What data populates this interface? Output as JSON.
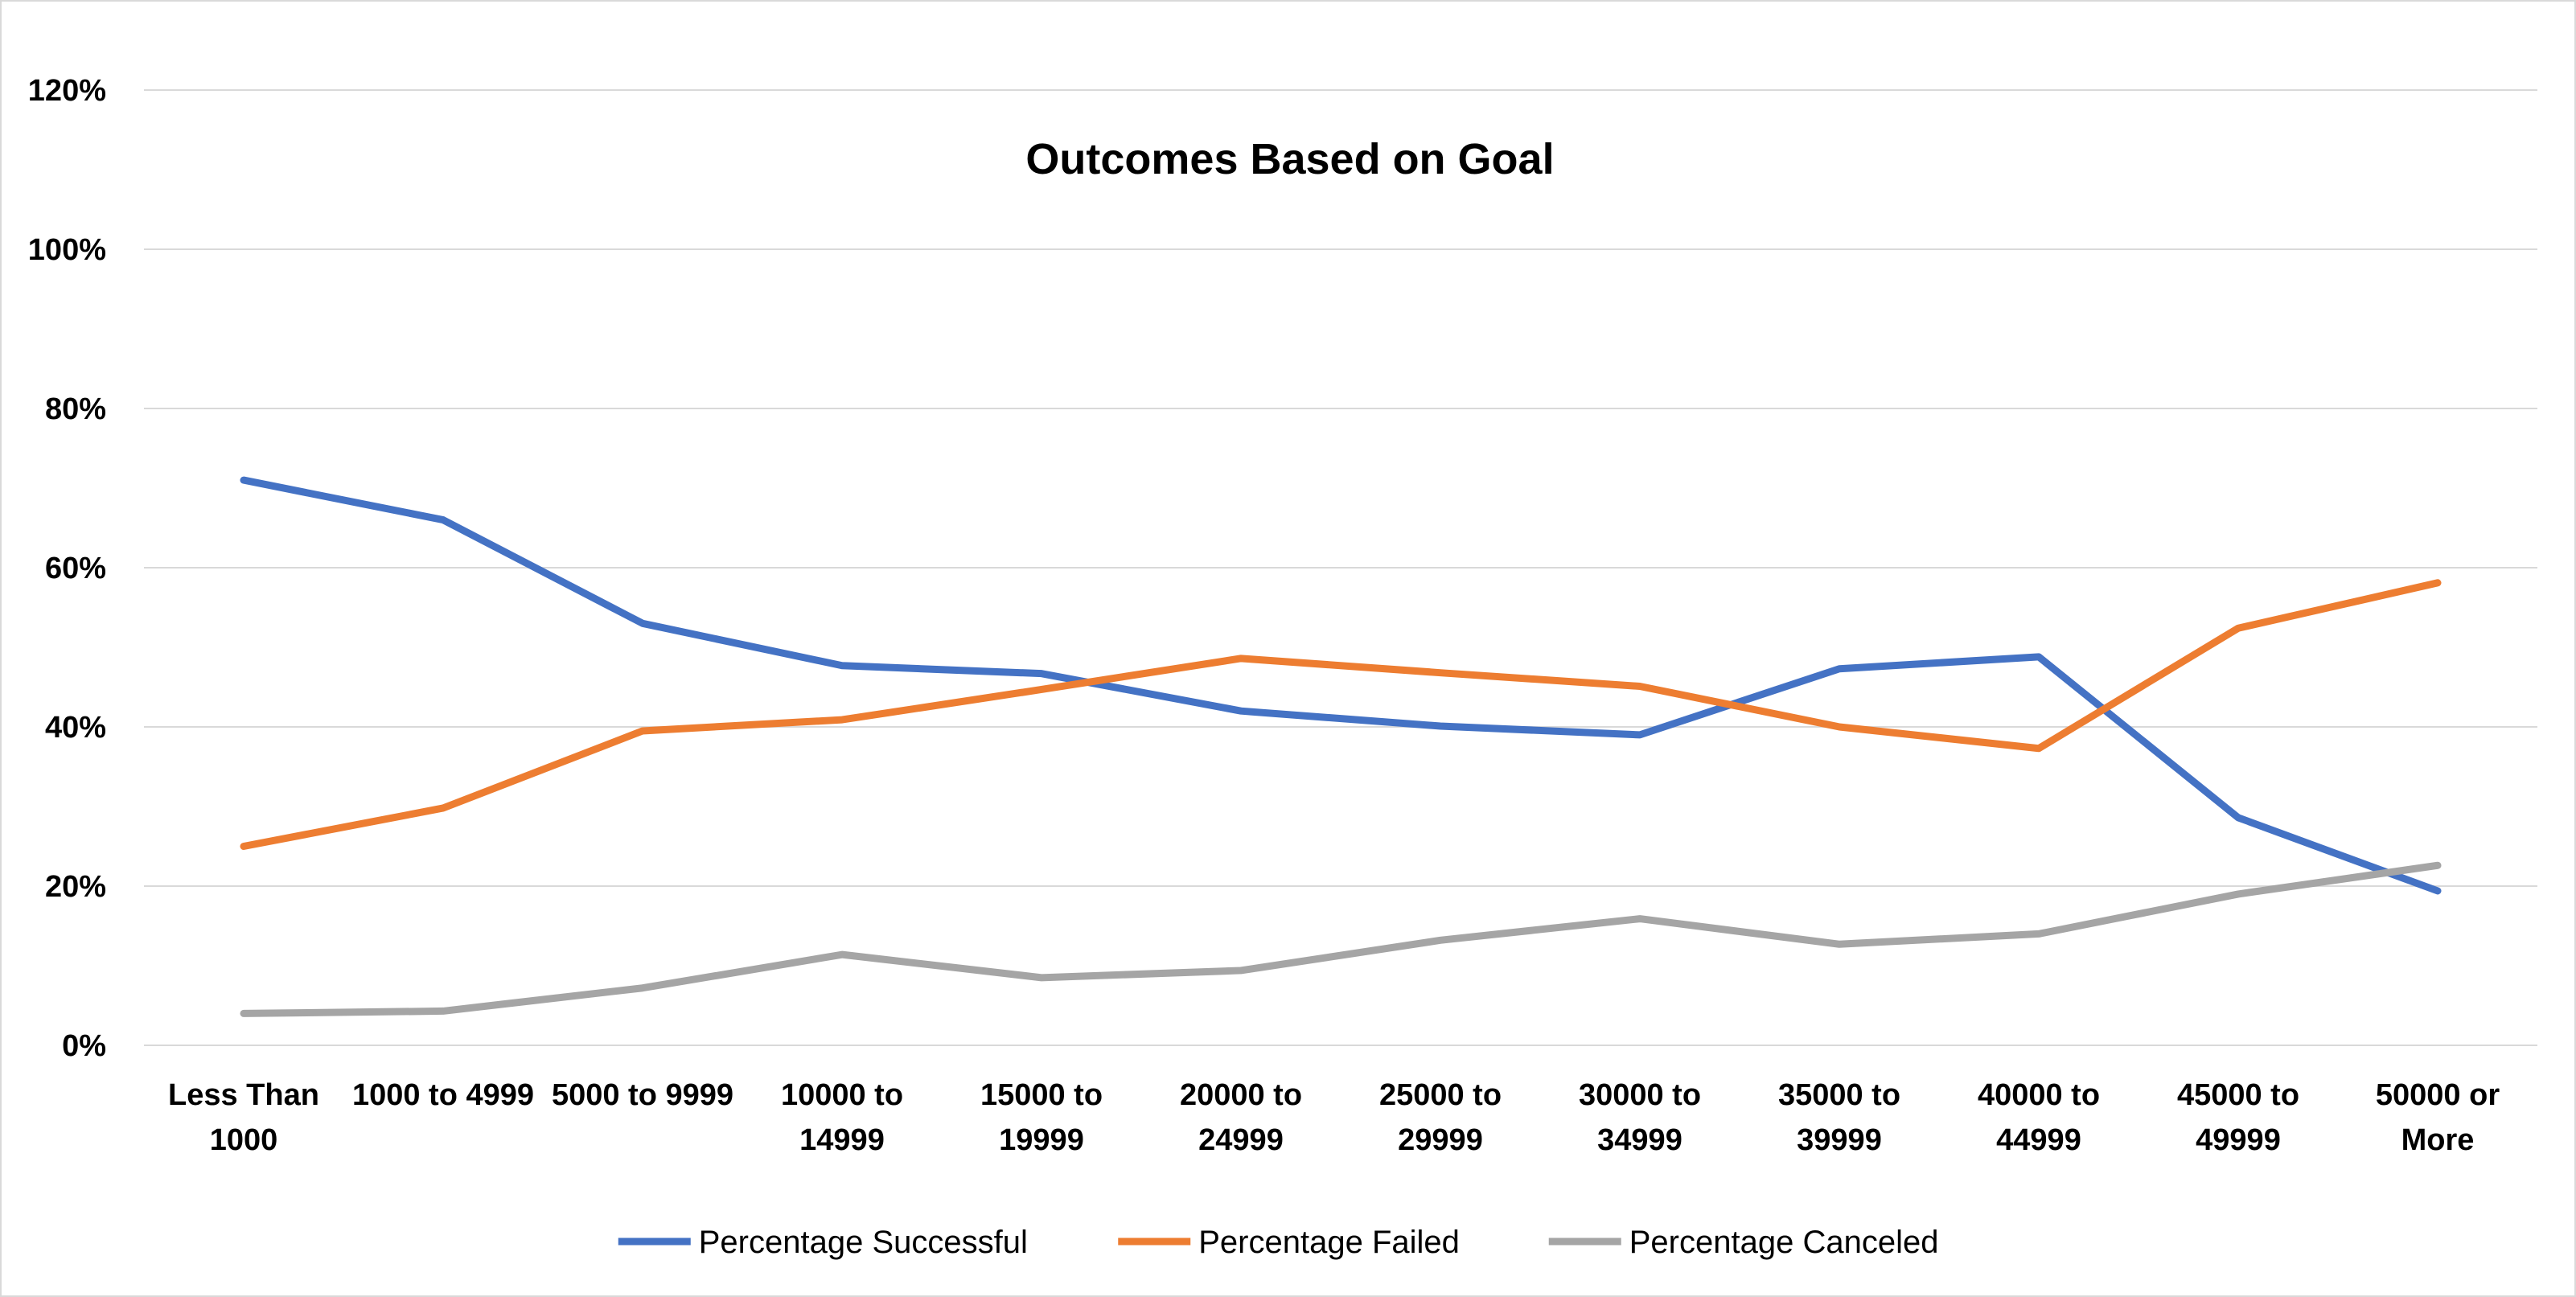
{
  "chart_data": {
    "type": "line",
    "title": "Outcomes Based on Goal",
    "xlabel": "",
    "ylabel": "",
    "categories": [
      [
        "Less Than",
        "1000"
      ],
      [
        "1000 to 4999"
      ],
      [
        "5000 to 9999"
      ],
      [
        "10000 to",
        "14999"
      ],
      [
        "15000 to",
        "19999"
      ],
      [
        "20000 to",
        "24999"
      ],
      [
        "25000 to",
        "29999"
      ],
      [
        "30000 to",
        "34999"
      ],
      [
        "35000 to",
        "39999"
      ],
      [
        "40000 to",
        "44999"
      ],
      [
        "45000 to",
        "49999"
      ],
      [
        "50000 or",
        "More"
      ]
    ],
    "ylim": [
      0,
      120
    ],
    "yticks": [
      "0%",
      "20%",
      "40%",
      "60%",
      "80%",
      "100%",
      "120%"
    ],
    "ytick_values": [
      0,
      20,
      40,
      60,
      80,
      100,
      120
    ],
    "grid": true,
    "legend_position": "bottom",
    "series": [
      {
        "name": "Percentage Successful",
        "color": "#4472c4",
        "values": [
          71,
          66,
          53,
          47.7,
          46.7,
          42,
          40.1,
          39,
          47.3,
          48.8,
          28.6,
          19.4
        ]
      },
      {
        "name": "Percentage Failed",
        "color": "#ed7d31",
        "values": [
          25,
          29.8,
          39.5,
          40.9,
          44.7,
          48.6,
          46.8,
          45.1,
          40,
          37.3,
          52.4,
          58.1
        ]
      },
      {
        "name": "Percentage Canceled",
        "color": "#a5a5a5",
        "values": [
          4,
          4.3,
          7.2,
          11.4,
          8.5,
          9.4,
          13.2,
          15.9,
          12.7,
          14,
          19,
          22.6
        ]
      }
    ]
  }
}
